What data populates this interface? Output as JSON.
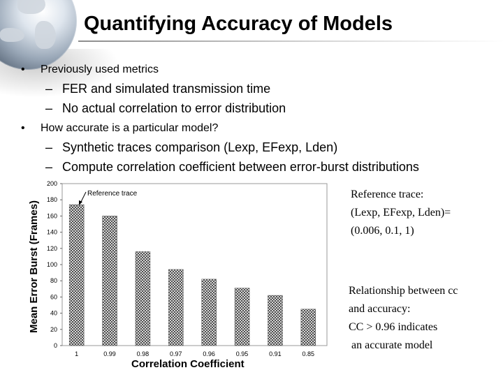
{
  "title": "Quantifying Accuracy of Models",
  "bullets": [
    {
      "text": "Previously used metrics",
      "subs": [
        "FER and simulated transmission time",
        "No actual correlation to error distribution"
      ]
    },
    {
      "text": "How accurate is a particular model?",
      "subs": [
        "Synthetic traces comparison (Lexp, EFexp, Lden)",
        "Compute correlation coefficient between error-burst distributions"
      ]
    }
  ],
  "bullet_glyph": "•",
  "dash_glyph": "–",
  "side_notes": {
    "ref_lines": [
      "Reference trace:",
      "(Lexp, EFexp, Lden)=",
      "(0.006, 0.1, 1)"
    ],
    "rel_lines": [
      "Relationship between cc",
      "and accuracy:",
      "CC > 0.96 indicates",
      " an accurate model"
    ]
  },
  "chart_data": {
    "type": "bar",
    "categories": [
      "1",
      "0.99",
      "0.98",
      "0.97",
      "0.96",
      "0.95",
      "0.91",
      "0.85"
    ],
    "values": [
      174,
      160,
      116,
      94,
      82,
      71,
      62,
      45
    ],
    "xlabel": "Correlation Coefficient",
    "ylabel": "Mean Error Burst (Frames)",
    "ylim": [
      0,
      200
    ],
    "yticks": [
      0,
      20,
      40,
      60,
      80,
      100,
      120,
      140,
      160,
      180,
      200
    ],
    "annotation": "Reference trace",
    "grid": false,
    "bar_pattern": "cross-hatch"
  }
}
